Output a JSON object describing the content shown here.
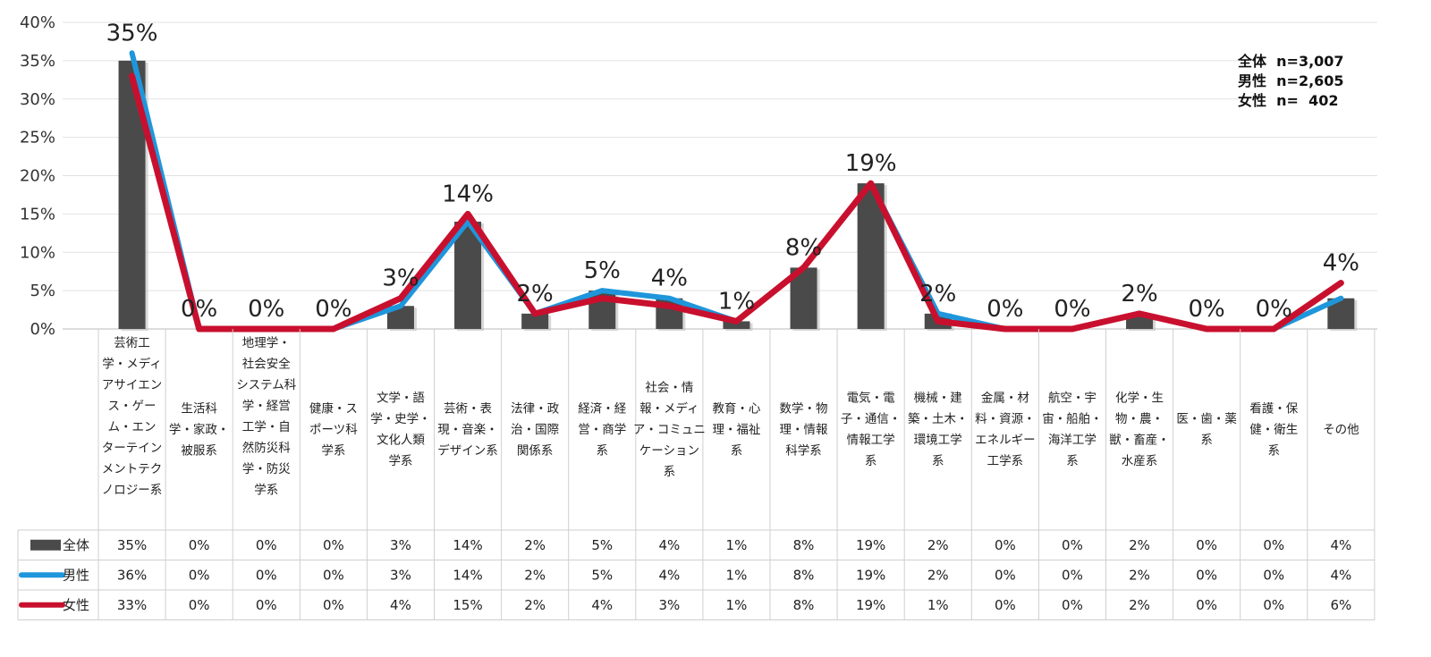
{
  "chart_data": {
    "type": "bar",
    "categories": [
      [
        "芸術工",
        "学・メディ",
        "アサイエン",
        "ス・ゲー",
        "ム・エン",
        "ターテイン",
        "メントテク",
        "ノロジー系"
      ],
      [
        "生活科",
        "学・家政・",
        "被服系"
      ],
      [
        "地理学・",
        "社会安全",
        "システム科",
        "学・経営",
        "工学・自",
        "然防災科",
        "学・防災",
        "学系"
      ],
      [
        "健康・ス",
        "ポーツ科",
        "学系"
      ],
      [
        "文学・語",
        "学・史学・",
        "文化人類",
        "学系"
      ],
      [
        "芸術・表",
        "現・音楽・",
        "デザイン系"
      ],
      [
        "法律・政",
        "治・国際",
        "関係系"
      ],
      [
        "経済・経",
        "営・商学",
        "系"
      ],
      [
        "社会・情",
        "報・メディ",
        "ア・コミュニ",
        "ケーション",
        "系"
      ],
      [
        "教育・心",
        "理・福祉",
        "系"
      ],
      [
        "数学・物",
        "理・情報",
        "科学系"
      ],
      [
        "電気・電",
        "子・通信・",
        "情報工学",
        "系"
      ],
      [
        "機械・建",
        "築・土木・",
        "環境工学",
        "系"
      ],
      [
        "金属・材",
        "料・資源・",
        "エネルギー",
        "工学系"
      ],
      [
        "航空・宇",
        "宙・船舶・",
        "海洋工学",
        "系"
      ],
      [
        "化学・生",
        "物・農・",
        "獣・畜産・",
        "水産系"
      ],
      [
        "医・歯・薬",
        "系"
      ],
      [
        "看護・保",
        "健・衛生",
        "系"
      ],
      [
        "その他"
      ]
    ],
    "series": [
      {
        "name": "全体",
        "type": "bar",
        "color": "#4a4a4a",
        "values": [
          35,
          0,
          0,
          0,
          3,
          14,
          2,
          5,
          4,
          1,
          8,
          19,
          2,
          0,
          0,
          2,
          0,
          0,
          4
        ]
      },
      {
        "name": "男性",
        "type": "line",
        "color": "#1f96db",
        "values": [
          36,
          0,
          0,
          0,
          3,
          14,
          2,
          5,
          4,
          1,
          8,
          19,
          2,
          0,
          0,
          2,
          0,
          0,
          4
        ]
      },
      {
        "name": "女性",
        "type": "line",
        "color": "#c8102e",
        "values": [
          33,
          0,
          0,
          0,
          4,
          15,
          2,
          4,
          3,
          1,
          8,
          19,
          1,
          0,
          0,
          2,
          0,
          0,
          6
        ]
      }
    ],
    "data_labels": [
      "35%",
      "0%",
      "0%",
      "0%",
      "3%",
      "14%",
      "2%",
      "5%",
      "4%",
      "1%",
      "8%",
      "19%",
      "2%",
      "0%",
      "0%",
      "2%",
      "0%",
      "0%",
      "4%"
    ],
    "table_rows": [
      {
        "name": "全体",
        "cells": [
          "35%",
          "0%",
          "0%",
          "0%",
          "3%",
          "14%",
          "2%",
          "5%",
          "4%",
          "1%",
          "8%",
          "19%",
          "2%",
          "0%",
          "0%",
          "2%",
          "0%",
          "0%",
          "4%"
        ]
      },
      {
        "name": "男性",
        "cells": [
          "36%",
          "0%",
          "0%",
          "0%",
          "3%",
          "14%",
          "2%",
          "5%",
          "4%",
          "1%",
          "8%",
          "19%",
          "2%",
          "0%",
          "0%",
          "2%",
          "0%",
          "0%",
          "4%"
        ]
      },
      {
        "name": "女性",
        "cells": [
          "33%",
          "0%",
          "0%",
          "0%",
          "4%",
          "15%",
          "2%",
          "4%",
          "3%",
          "1%",
          "8%",
          "19%",
          "1%",
          "0%",
          "0%",
          "2%",
          "0%",
          "0%",
          "6%"
        ]
      }
    ],
    "yticks": [
      "0%",
      "5%",
      "10%",
      "15%",
      "20%",
      "25%",
      "30%",
      "35%",
      "40%"
    ],
    "ylim": [
      0,
      40
    ],
    "grid": true,
    "legend": "in-table"
  },
  "sample_box": {
    "rows": [
      "全体  n=3,007",
      "男性  n=2,605",
      "女性  n=  402"
    ]
  }
}
